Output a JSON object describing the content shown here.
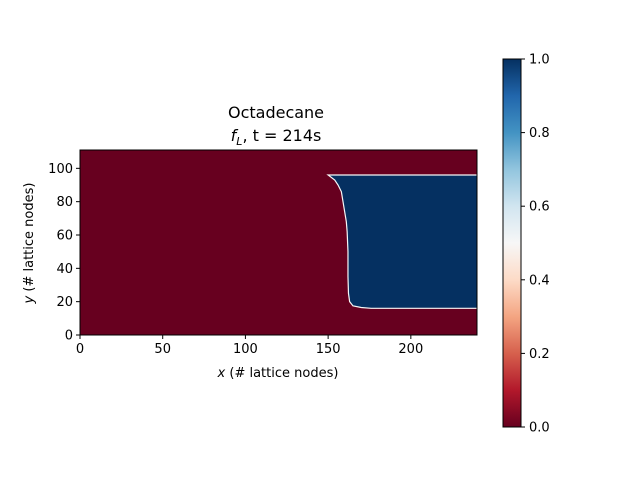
{
  "chart_data": {
    "type": "heatmap",
    "title_line1": "Octadecane",
    "title_line2_var": "f",
    "title_line2_sub": "L",
    "title_line2_rest": ", t = 214s",
    "xlabel_var": "x",
    "xlabel_rest": " (# lattice nodes)",
    "ylabel_var": "y",
    "ylabel_rest": " (# lattice nodes)",
    "xlim": [
      0,
      240
    ],
    "ylim": [
      0,
      111
    ],
    "xticks": [
      "0",
      "50",
      "100",
      "150",
      "200"
    ],
    "xtick_values": [
      0,
      50,
      100,
      150,
      200
    ],
    "yticks": [
      "0",
      "20",
      "40",
      "60",
      "80",
      "100"
    ],
    "ytick_values": [
      0,
      20,
      40,
      60,
      80,
      100
    ],
    "colormap": "RdBu",
    "colors": {
      "solid": "#67001f",
      "liquid": "#053061",
      "interface": "#f7f7f7"
    },
    "liquid_region": {
      "y_bottom": 16,
      "y_top": 96,
      "x_right": 240,
      "front": [
        [
          150,
          96
        ],
        [
          154,
          93
        ],
        [
          156,
          90
        ],
        [
          158,
          86
        ],
        [
          159,
          80
        ],
        [
          160,
          74
        ],
        [
          161,
          68
        ],
        [
          161.5,
          62
        ],
        [
          162,
          50
        ],
        [
          162,
          35
        ],
        [
          162.3,
          25
        ],
        [
          163,
          20
        ],
        [
          165,
          17.5
        ],
        [
          170,
          16.5
        ],
        [
          176,
          16
        ]
      ]
    },
    "colorbar": {
      "range": [
        0.0,
        1.0
      ],
      "ticks": [
        "0.0",
        "0.2",
        "0.4",
        "0.6",
        "0.8",
        "1.0"
      ],
      "tick_values": [
        0.0,
        0.2,
        0.4,
        0.6,
        0.8,
        1.0
      ]
    }
  }
}
